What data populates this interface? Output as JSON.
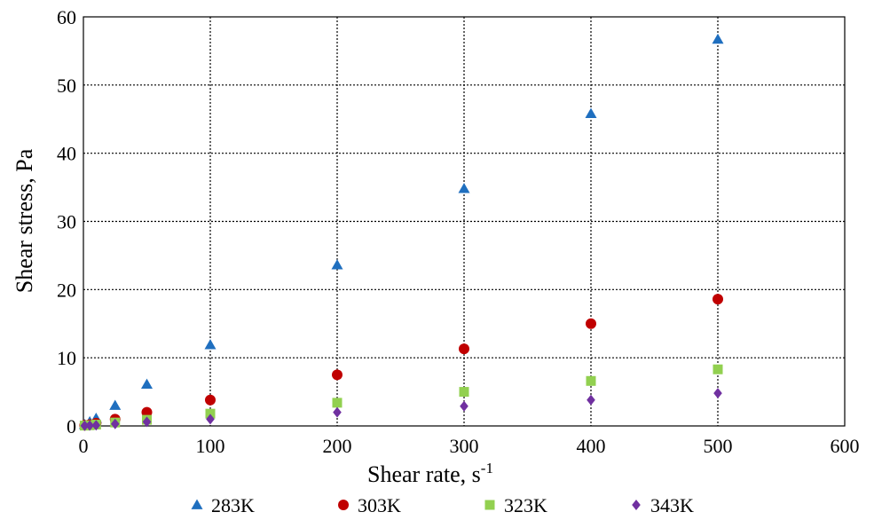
{
  "chart_data": {
    "type": "scatter",
    "title": "",
    "xlabel": "Shear rate, s",
    "xlabel_sup": "-1",
    "ylabel": "Shear stress, Pa",
    "xlim": [
      0,
      600
    ],
    "ylim": [
      0,
      60
    ],
    "x_ticks": [
      0,
      100,
      200,
      300,
      400,
      500,
      600
    ],
    "y_ticks": [
      0,
      10,
      20,
      30,
      40,
      50,
      60
    ],
    "grid": true,
    "legend_position": "bottom",
    "series": [
      {
        "name": "283K",
        "marker": "triangle",
        "color": "#1f6fbf",
        "x": [
          1,
          5,
          10,
          25,
          50,
          100,
          200,
          300,
          400,
          500
        ],
        "y": [
          0.2,
          0.6,
          1.1,
          3.0,
          6.1,
          11.9,
          23.6,
          34.8,
          45.8,
          56.7
        ]
      },
      {
        "name": "303K",
        "marker": "circle",
        "color": "#c00000",
        "x": [
          1,
          5,
          10,
          25,
          50,
          100,
          200,
          300,
          400,
          500
        ],
        "y": [
          0.1,
          0.2,
          0.4,
          1.0,
          2.0,
          3.8,
          7.5,
          11.3,
          15.0,
          18.6
        ]
      },
      {
        "name": "323K",
        "marker": "square",
        "color": "#92d050",
        "x": [
          1,
          5,
          10,
          25,
          50,
          100,
          200,
          300,
          400,
          500
        ],
        "y": [
          0.05,
          0.1,
          0.2,
          0.5,
          0.9,
          1.8,
          3.4,
          5.0,
          6.6,
          8.3
        ]
      },
      {
        "name": "343K",
        "marker": "diamond",
        "color": "#7030a0",
        "x": [
          1,
          5,
          10,
          25,
          50,
          100,
          200,
          300,
          400,
          500
        ],
        "y": [
          0.03,
          0.07,
          0.1,
          0.3,
          0.6,
          1.0,
          2.0,
          2.9,
          3.8,
          4.8
        ]
      }
    ]
  }
}
